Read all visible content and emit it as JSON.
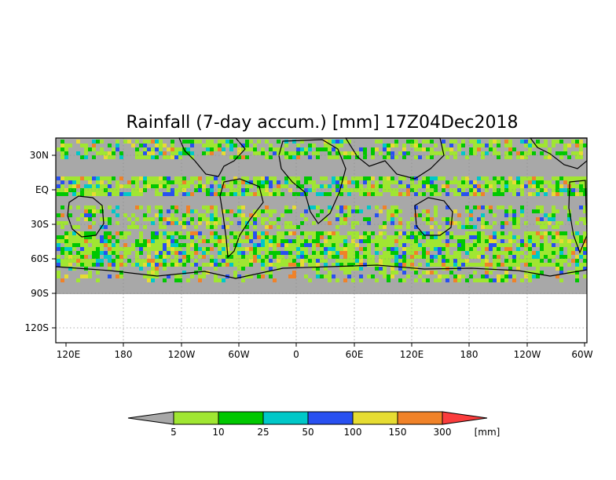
{
  "map": {
    "title": "Rainfall (7-day accum.) [mm] 17Z04Dec2018",
    "x_tick_labels": [
      "120E",
      "180",
      "120W",
      "60W",
      "0",
      "60E",
      "120E",
      "180",
      "120W",
      "60W"
    ],
    "y_tick_labels": [
      "30N",
      "EQ",
      "30S",
      "60S",
      "90S",
      "120S"
    ],
    "land_mask_color": "#a8a8a8",
    "grid": true
  },
  "colorbar": {
    "colors": [
      "#a8a8a8",
      "#a0e632",
      "#00c800",
      "#00c8c8",
      "#2850f0",
      "#e6dc32",
      "#f08228",
      "#fa3c3c"
    ],
    "boundary_labels": [
      "5",
      "10",
      "25",
      "50",
      "100",
      "150",
      "300"
    ],
    "units": "[mm]"
  }
}
